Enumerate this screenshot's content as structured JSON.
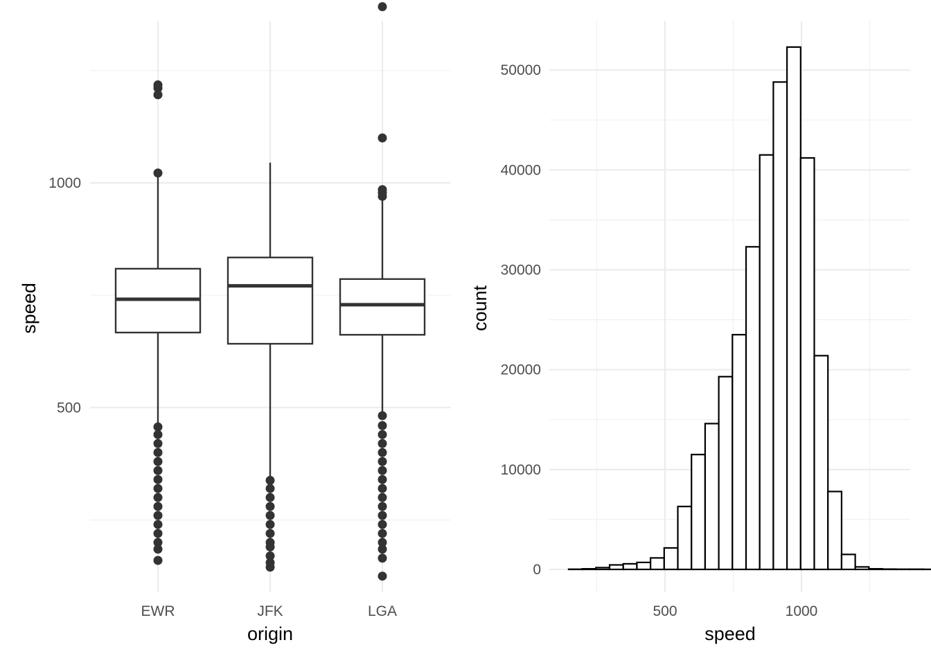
{
  "chart_data": [
    {
      "type": "box",
      "xlabel": "origin",
      "ylabel": "speed",
      "ylim": [
        87,
        1392
      ],
      "yticks": [
        500,
        1000
      ],
      "y_tick_labels": [
        "500",
        "1000"
      ],
      "y_minor_gridlines": [
        250,
        750,
        1250
      ],
      "grid": true,
      "categories": [
        "EWR",
        "JFK",
        "LGA"
      ],
      "boxes": [
        {
          "category": "EWR",
          "whisker_low": 465,
          "q1": 667,
          "median": 741,
          "q3": 809,
          "whisker_high": 1020
        },
        {
          "category": "JFK",
          "whisker_low": 342,
          "q1": 642,
          "median": 771,
          "q3": 834,
          "whisker_high": 1045
        },
        {
          "category": "LGA",
          "whisker_low": 488,
          "q1": 662,
          "median": 729,
          "q3": 786,
          "whisker_high": 985
        }
      ],
      "outliers": [
        {
          "category": "EWR",
          "values": [
            1218,
            1211,
            1196,
            1022,
            457,
            440,
            420,
            400,
            380,
            360,
            340,
            320,
            300,
            280,
            260,
            240,
            220,
            200,
            185,
            160
          ]
        },
        {
          "category": "JFK",
          "values": [
            338,
            320,
            300,
            280,
            260,
            240,
            220,
            200,
            190,
            170,
            155,
            145
          ]
        },
        {
          "category": "LGA",
          "values": [
            1392,
            1100,
            985,
            978,
            970,
            482,
            460,
            440,
            420,
            400,
            380,
            360,
            340,
            320,
            300,
            280,
            260,
            240,
            220,
            200,
            185,
            165,
            125
          ]
        }
      ]
    },
    {
      "type": "histogram",
      "xlabel": "speed",
      "ylabel": "count",
      "xlim": [
        120,
        1400
      ],
      "ylim": [
        0,
        55000
      ],
      "xticks": [
        500,
        1000
      ],
      "x_tick_labels": [
        "500",
        "1000"
      ],
      "x_minor_gridlines": [
        250,
        750,
        1250
      ],
      "yticks": [
        0,
        10000,
        20000,
        30000,
        40000,
        50000
      ],
      "y_tick_labels": [
        "0",
        "10000",
        "20000",
        "30000",
        "40000",
        "50000"
      ],
      "y_minor_gridlines": [
        5000,
        15000,
        25000,
        35000,
        45000
      ],
      "grid": true,
      "bins": {
        "start": 147,
        "width": 50,
        "counts": [
          20,
          60,
          180,
          450,
          560,
          700,
          1150,
          2150,
          6300,
          11500,
          14600,
          19300,
          23500,
          32300,
          41500,
          48800,
          52300,
          41200,
          21400,
          7800,
          1500,
          250,
          60,
          30,
          20,
          20,
          10,
          10,
          10,
          10,
          10,
          10,
          10,
          10
        ]
      }
    }
  ]
}
